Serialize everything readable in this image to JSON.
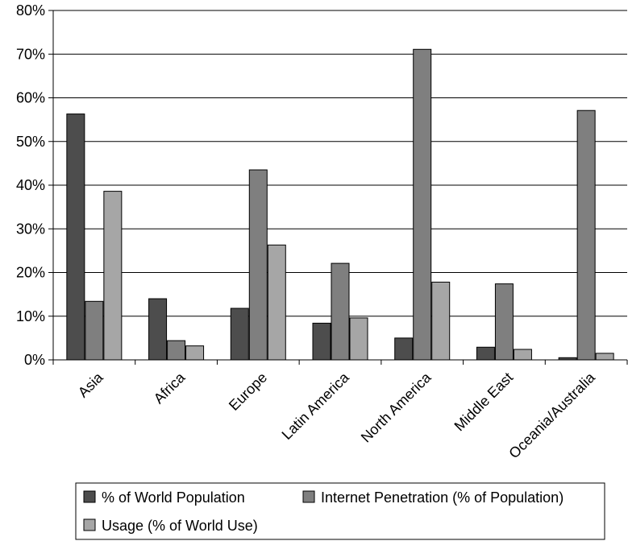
{
  "chart_data": {
    "type": "bar",
    "title": "",
    "xlabel": "",
    "ylabel": "",
    "ylim": [
      0,
      80
    ],
    "yticks": [
      "0%",
      "10%",
      "20%",
      "30%",
      "40%",
      "50%",
      "60%",
      "70%",
      "80%"
    ],
    "grid": true,
    "legend_position": "bottom",
    "categories": [
      "Asia",
      "Africa",
      "Europe",
      "Latin America",
      "North America",
      "Middle East",
      "Oceania/Australia"
    ],
    "series": [
      {
        "name": "% of World Population",
        "color": "#4d4d4d",
        "values": [
          56.3,
          14.0,
          11.8,
          8.4,
          5.0,
          2.9,
          0.5
        ]
      },
      {
        "name": "Internet Penetration (% of Population)",
        "color": "#7f7f7f",
        "values": [
          13.4,
          4.4,
          43.5,
          22.1,
          71.1,
          17.4,
          57.1
        ]
      },
      {
        "name": "Usage (% of World Use)",
        "color": "#a6a6a6",
        "values": [
          38.6,
          3.2,
          26.3,
          9.6,
          17.8,
          2.4,
          1.5
        ]
      }
    ]
  }
}
